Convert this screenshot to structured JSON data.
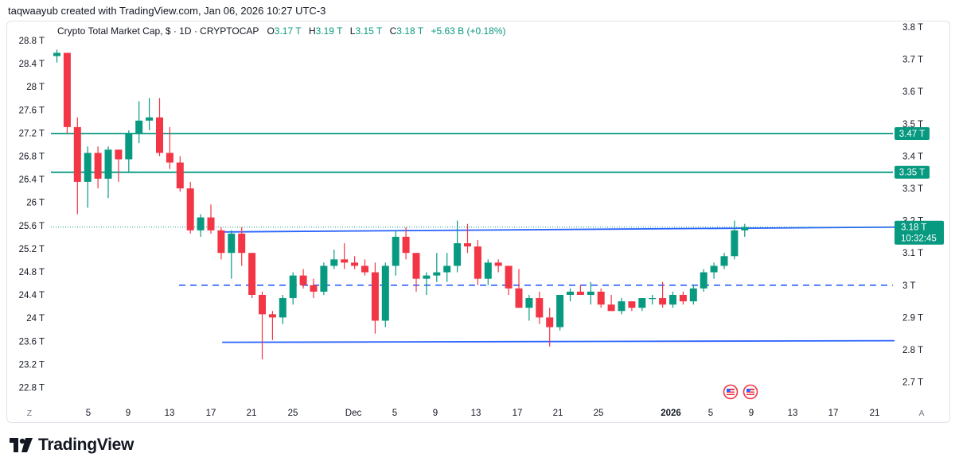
{
  "credit": "taqwaayub created with TradingView.com, Jan 06, 2026 10:27 UTC-3",
  "brand": {
    "name": "TradingView"
  },
  "legend": {
    "symbol": "Crypto Total Market Cap, $ · 1D · CRYPTOCAP",
    "open_label": "O",
    "open": "3.17 T",
    "high_label": "H",
    "high": "3.19 T",
    "low_label": "L",
    "low": "3.15 T",
    "close_label": "C",
    "close": "3.18 T",
    "change": "+5.63 B (+0.18%)"
  },
  "colors": {
    "up": "#089981",
    "down": "#f23645",
    "hline": "#089981",
    "trend": "#2962ff",
    "price_tag": "#089981"
  },
  "chart_data": {
    "type": "candlestick",
    "left_axis": [
      "28.8 T",
      "28.4 T",
      "28 T",
      "27.6 T",
      "27.2 T",
      "26.8 T",
      "26.4 T",
      "26 T",
      "25.6 T",
      "25.2 T",
      "24.8 T",
      "24.4 T",
      "24 T",
      "23.6 T",
      "23.2 T",
      "22.8 T"
    ],
    "right_axis": [
      "3.8 T",
      "3.7 T",
      "3.6 T",
      "3.5 T",
      "3.4 T",
      "3.3 T",
      "3.2 T",
      "3.1 T",
      "3 T",
      "2.9 T",
      "2.8 T",
      "2.7 T"
    ],
    "x_axis": [
      {
        "label": "5",
        "bold": false
      },
      {
        "label": "9",
        "bold": false
      },
      {
        "label": "13",
        "bold": false
      },
      {
        "label": "17",
        "bold": false
      },
      {
        "label": "21",
        "bold": false
      },
      {
        "label": "25",
        "bold": false
      },
      {
        "label": "Dec",
        "bold": false
      },
      {
        "label": "5",
        "bold": false
      },
      {
        "label": "9",
        "bold": false
      },
      {
        "label": "13",
        "bold": false
      },
      {
        "label": "17",
        "bold": false
      },
      {
        "label": "21",
        "bold": false
      },
      {
        "label": "25",
        "bold": false
      },
      {
        "label": "2026",
        "bold": true
      },
      {
        "label": "5",
        "bold": false
      },
      {
        "label": "9",
        "bold": false
      },
      {
        "label": "13",
        "bold": false
      },
      {
        "label": "17",
        "bold": false
      },
      {
        "label": "21",
        "bold": false
      }
    ],
    "axis_corner_left": "Z",
    "axis_corner_right": "A",
    "horizontal_levels": [
      {
        "value": 3.47,
        "label": "3.47 T",
        "style": "solid"
      },
      {
        "value": 3.35,
        "label": "3.35 T",
        "style": "solid"
      },
      {
        "value": 3.0,
        "label": "",
        "style": "dashed"
      }
    ],
    "last_price": {
      "value": 3.18,
      "label": "3.18 T",
      "countdown": "10:32:45"
    },
    "candles": [
      {
        "o": 3.71,
        "h": 3.73,
        "l": 3.69,
        "c": 3.72
      },
      {
        "o": 3.72,
        "h": 3.72,
        "l": 3.47,
        "c": 3.49
      },
      {
        "o": 3.49,
        "h": 3.52,
        "l": 3.22,
        "c": 3.32
      },
      {
        "o": 3.32,
        "h": 3.43,
        "l": 3.24,
        "c": 3.41
      },
      {
        "o": 3.41,
        "h": 3.43,
        "l": 3.3,
        "c": 3.33
      },
      {
        "o": 3.33,
        "h": 3.43,
        "l": 3.27,
        "c": 3.42
      },
      {
        "o": 3.42,
        "h": 3.42,
        "l": 3.32,
        "c": 3.39
      },
      {
        "o": 3.39,
        "h": 3.48,
        "l": 3.35,
        "c": 3.47
      },
      {
        "o": 3.47,
        "h": 3.57,
        "l": 3.44,
        "c": 3.51
      },
      {
        "o": 3.51,
        "h": 3.58,
        "l": 3.48,
        "c": 3.52
      },
      {
        "o": 3.52,
        "h": 3.58,
        "l": 3.4,
        "c": 3.41
      },
      {
        "o": 3.41,
        "h": 3.49,
        "l": 3.36,
        "c": 3.38
      },
      {
        "o": 3.38,
        "h": 3.4,
        "l": 3.29,
        "c": 3.3
      },
      {
        "o": 3.3,
        "h": 3.32,
        "l": 3.16,
        "c": 3.17
      },
      {
        "o": 3.17,
        "h": 3.22,
        "l": 3.15,
        "c": 3.21
      },
      {
        "o": 3.21,
        "h": 3.25,
        "l": 3.16,
        "c": 3.17
      },
      {
        "o": 3.17,
        "h": 3.18,
        "l": 3.08,
        "c": 3.1
      },
      {
        "o": 3.1,
        "h": 3.17,
        "l": 3.02,
        "c": 3.16
      },
      {
        "o": 3.16,
        "h": 3.18,
        "l": 3.06,
        "c": 3.1
      },
      {
        "o": 3.1,
        "h": 3.1,
        "l": 2.96,
        "c": 2.97
      },
      {
        "o": 2.97,
        "h": 2.98,
        "l": 2.77,
        "c": 2.91
      },
      {
        "o": 2.91,
        "h": 2.92,
        "l": 2.83,
        "c": 2.9
      },
      {
        "o": 2.9,
        "h": 2.97,
        "l": 2.88,
        "c": 2.96
      },
      {
        "o": 2.96,
        "h": 3.04,
        "l": 2.94,
        "c": 3.03
      },
      {
        "o": 3.03,
        "h": 3.05,
        "l": 2.99,
        "c": 3.0
      },
      {
        "o": 3.0,
        "h": 3.02,
        "l": 2.96,
        "c": 2.98
      },
      {
        "o": 2.98,
        "h": 3.07,
        "l": 2.97,
        "c": 3.06
      },
      {
        "o": 3.06,
        "h": 3.11,
        "l": 3.05,
        "c": 3.08
      },
      {
        "o": 3.08,
        "h": 3.13,
        "l": 3.05,
        "c": 3.07
      },
      {
        "o": 3.07,
        "h": 3.09,
        "l": 3.05,
        "c": 3.06
      },
      {
        "o": 3.06,
        "h": 3.08,
        "l": 3.03,
        "c": 3.04
      },
      {
        "o": 3.04,
        "h": 3.07,
        "l": 2.85,
        "c": 2.89
      },
      {
        "o": 2.89,
        "h": 3.07,
        "l": 2.87,
        "c": 3.06
      },
      {
        "o": 3.06,
        "h": 3.17,
        "l": 3.03,
        "c": 3.15
      },
      {
        "o": 3.15,
        "h": 3.18,
        "l": 3.08,
        "c": 3.1
      },
      {
        "o": 3.1,
        "h": 3.1,
        "l": 2.98,
        "c": 3.02
      },
      {
        "o": 3.02,
        "h": 3.04,
        "l": 2.97,
        "c": 3.03
      },
      {
        "o": 3.03,
        "h": 3.1,
        "l": 3.01,
        "c": 3.04
      },
      {
        "o": 3.04,
        "h": 3.1,
        "l": 3.01,
        "c": 3.06
      },
      {
        "o": 3.06,
        "h": 3.2,
        "l": 3.04,
        "c": 3.13
      },
      {
        "o": 3.13,
        "h": 3.19,
        "l": 3.1,
        "c": 3.12
      },
      {
        "o": 3.12,
        "h": 3.14,
        "l": 3.0,
        "c": 3.02
      },
      {
        "o": 3.02,
        "h": 3.08,
        "l": 3.0,
        "c": 3.07
      },
      {
        "o": 3.07,
        "h": 3.08,
        "l": 3.04,
        "c": 3.06
      },
      {
        "o": 3.06,
        "h": 3.06,
        "l": 2.97,
        "c": 2.99
      },
      {
        "o": 2.99,
        "h": 3.05,
        "l": 2.93,
        "c": 2.93
      },
      {
        "o": 2.93,
        "h": 2.97,
        "l": 2.89,
        "c": 2.96
      },
      {
        "o": 2.96,
        "h": 2.98,
        "l": 2.88,
        "c": 2.9
      },
      {
        "o": 2.9,
        "h": 2.93,
        "l": 2.81,
        "c": 2.87
      },
      {
        "o": 2.87,
        "h": 2.97,
        "l": 2.86,
        "c": 2.97
      },
      {
        "o": 2.97,
        "h": 2.99,
        "l": 2.95,
        "c": 2.98
      },
      {
        "o": 2.98,
        "h": 3.0,
        "l": 2.97,
        "c": 2.97
      },
      {
        "o": 2.97,
        "h": 3.01,
        "l": 2.94,
        "c": 2.98
      },
      {
        "o": 2.98,
        "h": 2.99,
        "l": 2.93,
        "c": 2.94
      },
      {
        "o": 2.94,
        "h": 2.97,
        "l": 2.92,
        "c": 2.92
      },
      {
        "o": 2.92,
        "h": 2.96,
        "l": 2.91,
        "c": 2.95
      },
      {
        "o": 2.95,
        "h": 2.95,
        "l": 2.92,
        "c": 2.93
      },
      {
        "o": 2.93,
        "h": 2.96,
        "l": 2.92,
        "c": 2.96
      },
      {
        "o": 2.96,
        "h": 2.97,
        "l": 2.94,
        "c": 2.96
      },
      {
        "o": 2.96,
        "h": 3.01,
        "l": 2.93,
        "c": 2.94
      },
      {
        "o": 2.94,
        "h": 2.98,
        "l": 2.93,
        "c": 2.97
      },
      {
        "o": 2.97,
        "h": 2.98,
        "l": 2.94,
        "c": 2.95
      },
      {
        "o": 2.95,
        "h": 3.0,
        "l": 2.94,
        "c": 2.99
      },
      {
        "o": 2.99,
        "h": 3.05,
        "l": 2.98,
        "c": 3.04
      },
      {
        "o": 3.04,
        "h": 3.07,
        "l": 3.02,
        "c": 3.06
      },
      {
        "o": 3.06,
        "h": 3.1,
        "l": 3.05,
        "c": 3.09
      },
      {
        "o": 3.09,
        "h": 3.2,
        "l": 3.08,
        "c": 3.17
      },
      {
        "o": 3.17,
        "h": 3.19,
        "l": 3.15,
        "c": 3.18
      }
    ],
    "trendlines": [
      {
        "name": "resistance",
        "from": {
          "i": 13,
          "v": 3.165
        },
        "to": {
          "i": 73,
          "v": 3.18
        },
        "style": "solid"
      },
      {
        "name": "support",
        "from": {
          "i": 13,
          "v": 2.823
        },
        "to": {
          "i": 73,
          "v": 2.828
        },
        "style": "solid"
      }
    ],
    "event_markers": [
      {
        "i": 69
      },
      {
        "i": 71
      }
    ]
  }
}
